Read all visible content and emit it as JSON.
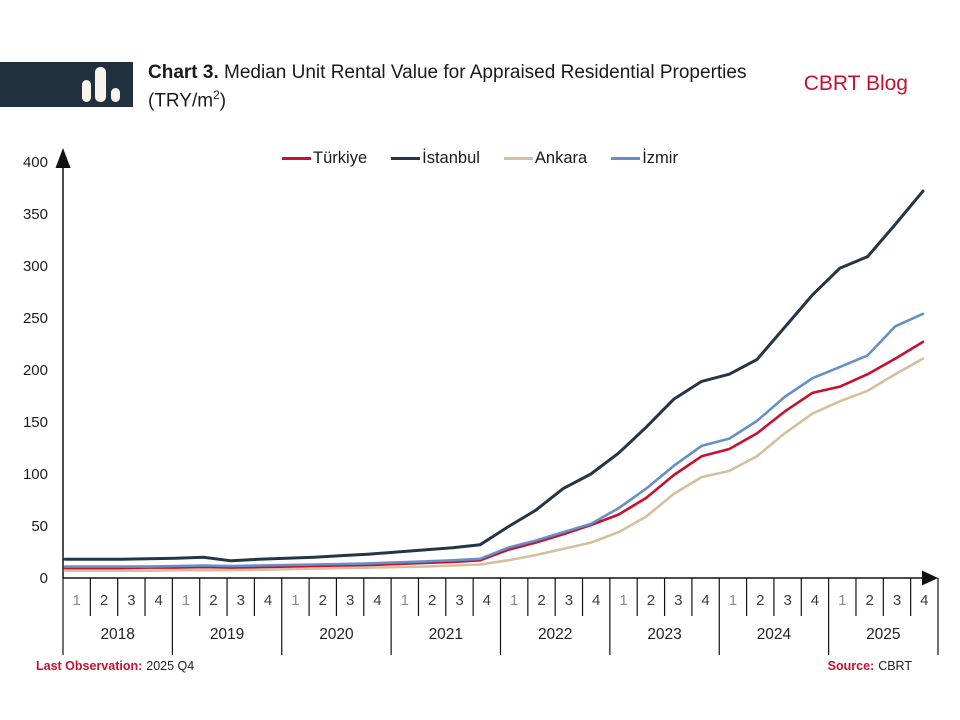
{
  "header": {
    "title_prefix": "Chart 3.",
    "title_main": " Median Unit Rental Value for Appraised Residential Properties (TRY/m",
    "title_sup": "2",
    "title_close": ")",
    "brand": "CBRT Blog",
    "logo_icon": "bar-chart-icon"
  },
  "footer": {
    "last_obs_label": "Last Observation:",
    "last_obs_value": "2025 Q4",
    "source_label": "Source:",
    "source_value": "CBRT"
  },
  "colors": {
    "accent_red": "#c8102e",
    "navy": "#20303f",
    "tan": "#d4bf9e",
    "steel_blue": "#6590c6",
    "axis": "#111111"
  },
  "chart_data": {
    "type": "line",
    "title": "Chart 3. Median Unit Rental Value for Appraised Residential Properties (TRY/m2)",
    "ylabel": "",
    "xlabel": "",
    "ylim": [
      0,
      400
    ],
    "yticks": [
      0,
      50,
      100,
      150,
      200,
      250,
      300,
      350,
      400
    ],
    "grid": false,
    "legend_position": "top",
    "x_axis": {
      "years": [
        "2018",
        "2019",
        "2020",
        "2021",
        "2022",
        "2023",
        "2024",
        "2025"
      ],
      "quarters_per_year": [
        "1",
        "2",
        "3",
        "4"
      ]
    },
    "series": [
      {
        "name": "Türkiye",
        "color": "#c8102e",
        "values": [
          9.5,
          9.5,
          9.5,
          10,
          10,
          10.5,
          10,
          10.5,
          11,
          11.5,
          12,
          12.5,
          13.5,
          14.5,
          15.5,
          17,
          27,
          34,
          42,
          51,
          61,
          77,
          99,
          117,
          124,
          139,
          160,
          178,
          184,
          196,
          211,
          227
        ]
      },
      {
        "name": "İstanbul",
        "color": "#233645",
        "values": [
          18,
          18,
          18,
          18.5,
          19,
          20,
          16.5,
          18,
          19,
          20,
          21.5,
          23,
          25,
          27,
          29,
          32,
          49,
          65,
          86,
          100,
          120,
          145,
          172,
          189,
          196,
          210,
          241,
          272,
          298,
          309,
          340,
          372
        ]
      },
      {
        "name": "Ankara",
        "color": "#d4bf9e",
        "values": [
          7,
          7,
          7,
          7,
          7.5,
          7.5,
          7.5,
          8,
          8.5,
          9,
          9.5,
          10,
          10.5,
          11,
          12,
          13,
          17,
          22,
          28,
          34,
          44,
          59,
          81,
          97,
          103,
          117,
          139,
          158,
          170,
          180,
          196,
          211
        ]
      },
      {
        "name": "İzmir",
        "color": "#6590c6",
        "values": [
          11,
          11,
          11,
          11,
          11.5,
          12,
          11.5,
          12,
          12.5,
          13,
          13.5,
          14,
          15,
          16,
          17,
          18.5,
          29,
          36,
          44,
          52,
          67,
          86,
          108,
          127,
          134,
          151,
          174,
          192,
          203,
          214,
          242,
          254
        ]
      }
    ]
  }
}
